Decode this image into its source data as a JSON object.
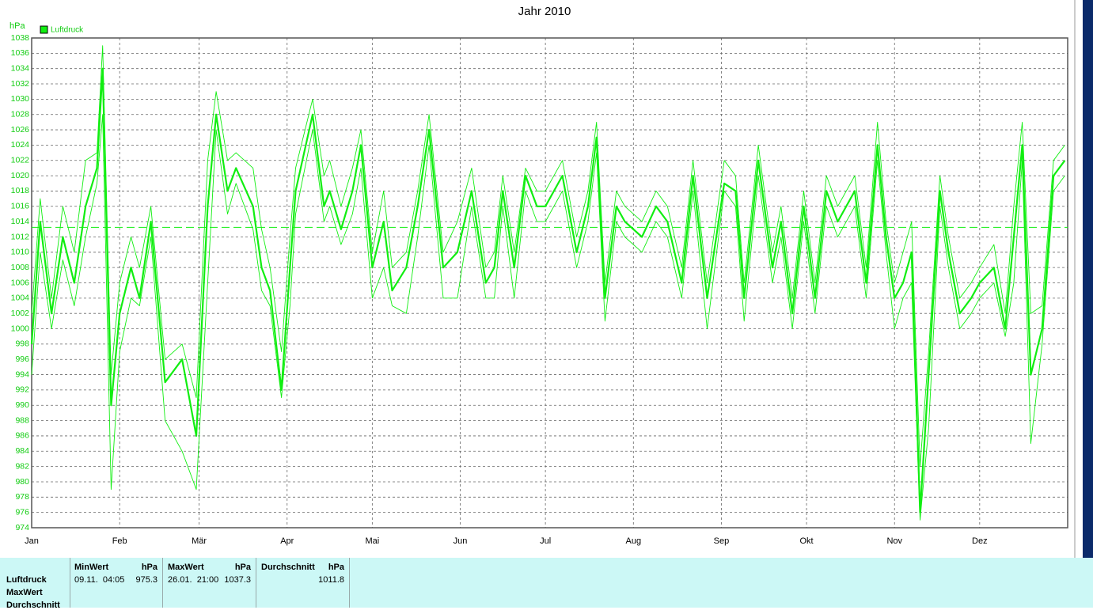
{
  "chart_data": {
    "type": "line",
    "title": "Jahr 2010",
    "y_unit": "hPa",
    "x": [
      0,
      3,
      7,
      11,
      15,
      19,
      23,
      25,
      28,
      31,
      35,
      38,
      42,
      47,
      53,
      58,
      62,
      65,
      69,
      72,
      78,
      81,
      84,
      88,
      91,
      93,
      99,
      103,
      105,
      109,
      113,
      116,
      120,
      124,
      127,
      132,
      136,
      140,
      145,
      150,
      155,
      160,
      163,
      166,
      170,
      174,
      178,
      181,
      187,
      192,
      196,
      199,
      202,
      206,
      209,
      215,
      220,
      224,
      229,
      233,
      238,
      244,
      248,
      251,
      256,
      261,
      264,
      268,
      272,
      276,
      280,
      284,
      290,
      294,
      298,
      301,
      304,
      307,
      310,
      313,
      316,
      320,
      323,
      327,
      331,
      334,
      339,
      343,
      346,
      349,
      352,
      356,
      360,
      364
    ],
    "xlim": [
      0,
      365
    ],
    "xticks": [
      {
        "value": 0,
        "label": "Jan"
      },
      {
        "value": 31,
        "label": "Feb"
      },
      {
        "value": 59,
        "label": "Mär"
      },
      {
        "value": 90,
        "label": "Apr"
      },
      {
        "value": 120,
        "label": "Mai"
      },
      {
        "value": 151,
        "label": "Jun"
      },
      {
        "value": 181,
        "label": "Jul"
      },
      {
        "value": 212,
        "label": "Aug"
      },
      {
        "value": 243,
        "label": "Sep"
      },
      {
        "value": 273,
        "label": "Okt"
      },
      {
        "value": 304,
        "label": "Nov"
      },
      {
        "value": 334,
        "label": "Dez"
      }
    ],
    "ylim": [
      974,
      1038
    ],
    "yticks": [
      974,
      976,
      978,
      980,
      982,
      984,
      986,
      988,
      990,
      992,
      994,
      996,
      998,
      1000,
      1002,
      1004,
      1006,
      1008,
      1010,
      1012,
      1014,
      1016,
      1018,
      1020,
      1022,
      1024,
      1026,
      1028,
      1030,
      1032,
      1034,
      1036,
      1038
    ],
    "grid": true,
    "reference_line": 1013.25,
    "series": [
      {
        "name": "Luftdruck",
        "color": "#11ee11",
        "values": [
          998,
          1014,
          1002,
          1012,
          1006,
          1016,
          1021,
          1034,
          990,
          1002,
          1008,
          1004,
          1014,
          993,
          996,
          986,
          1016,
          1028,
          1018,
          1021,
          1016,
          1008,
          1005,
          992,
          1008,
          1018,
          1028,
          1016,
          1018,
          1013,
          1018,
          1024,
          1008,
          1014,
          1005,
          1008,
          1016,
          1026,
          1008,
          1010,
          1018,
          1006,
          1008,
          1018,
          1008,
          1020,
          1016,
          1016,
          1020,
          1010,
          1016,
          1025,
          1004,
          1016,
          1014,
          1012,
          1016,
          1014,
          1006,
          1020,
          1004,
          1019,
          1018,
          1004,
          1022,
          1008,
          1014,
          1002,
          1016,
          1004,
          1018,
          1014,
          1018,
          1006,
          1024,
          1012,
          1004,
          1006,
          1010,
          976,
          994,
          1018,
          1010,
          1002,
          1004,
          1006,
          1008,
          1000,
          1012,
          1024,
          994,
          1000,
          1020,
          1022
        ],
        "low": [
          994,
          1010,
          1000,
          1009,
          1003,
          1012,
          1019,
          1028,
          979,
          997,
          1004,
          1003,
          1012,
          988,
          984,
          979,
          1006,
          1026,
          1015,
          1019,
          1013,
          1005,
          1003,
          991,
          1003,
          1015,
          1026,
          1014,
          1016,
          1011,
          1015,
          1021,
          1004,
          1008,
          1003,
          1002,
          1012,
          1024,
          1004,
          1004,
          1016,
          1004,
          1004,
          1016,
          1004,
          1018,
          1014,
          1014,
          1018,
          1008,
          1014,
          1023,
          1001,
          1014,
          1012,
          1010,
          1014,
          1012,
          1004,
          1018,
          1000,
          1018,
          1016,
          1001,
          1020,
          1006,
          1012,
          1000,
          1014,
          1002,
          1016,
          1012,
          1016,
          1004,
          1022,
          1010,
          1000,
          1004,
          1006,
          975,
          987,
          1016,
          1008,
          1000,
          1002,
          1004,
          1006,
          999,
          1006,
          1022,
          985,
          998,
          1018,
          1020
        ],
        "high": [
          1002,
          1017,
          1004,
          1016,
          1010,
          1022,
          1023,
          1037,
          994,
          1006,
          1012,
          1008,
          1016,
          996,
          998,
          991,
          1022,
          1031,
          1022,
          1023,
          1021,
          1013,
          1008,
          997,
          1012,
          1021,
          1030,
          1020,
          1022,
          1016,
          1021,
          1026,
          1010,
          1018,
          1008,
          1010,
          1018,
          1028,
          1010,
          1014,
          1021,
          1008,
          1010,
          1020,
          1010,
          1021,
          1018,
          1018,
          1022,
          1012,
          1018,
          1027,
          1006,
          1018,
          1016,
          1014,
          1018,
          1016,
          1008,
          1022,
          1006,
          1022,
          1020,
          1006,
          1024,
          1010,
          1016,
          1004,
          1018,
          1006,
          1020,
          1016,
          1020,
          1008,
          1027,
          1014,
          1006,
          1010,
          1014,
          982,
          997,
          1020,
          1012,
          1004,
          1006,
          1008,
          1011,
          1002,
          1016,
          1027,
          1002,
          1003,
          1022,
          1024
        ]
      }
    ]
  },
  "summary": {
    "row_labels": [
      "Luftdruck",
      "MaxWert",
      "Durchschnitt"
    ],
    "columns": [
      {
        "header": "MinWert",
        "unit": "hPa",
        "time": "09.11.  04:05",
        "value": 975.3
      },
      {
        "header": "MaxWert",
        "unit": "hPa",
        "time": "26.01.  21:00",
        "value": 1037.3
      },
      {
        "header": "Durchschnitt",
        "unit": "hPa",
        "value": 1011.8
      }
    ]
  }
}
